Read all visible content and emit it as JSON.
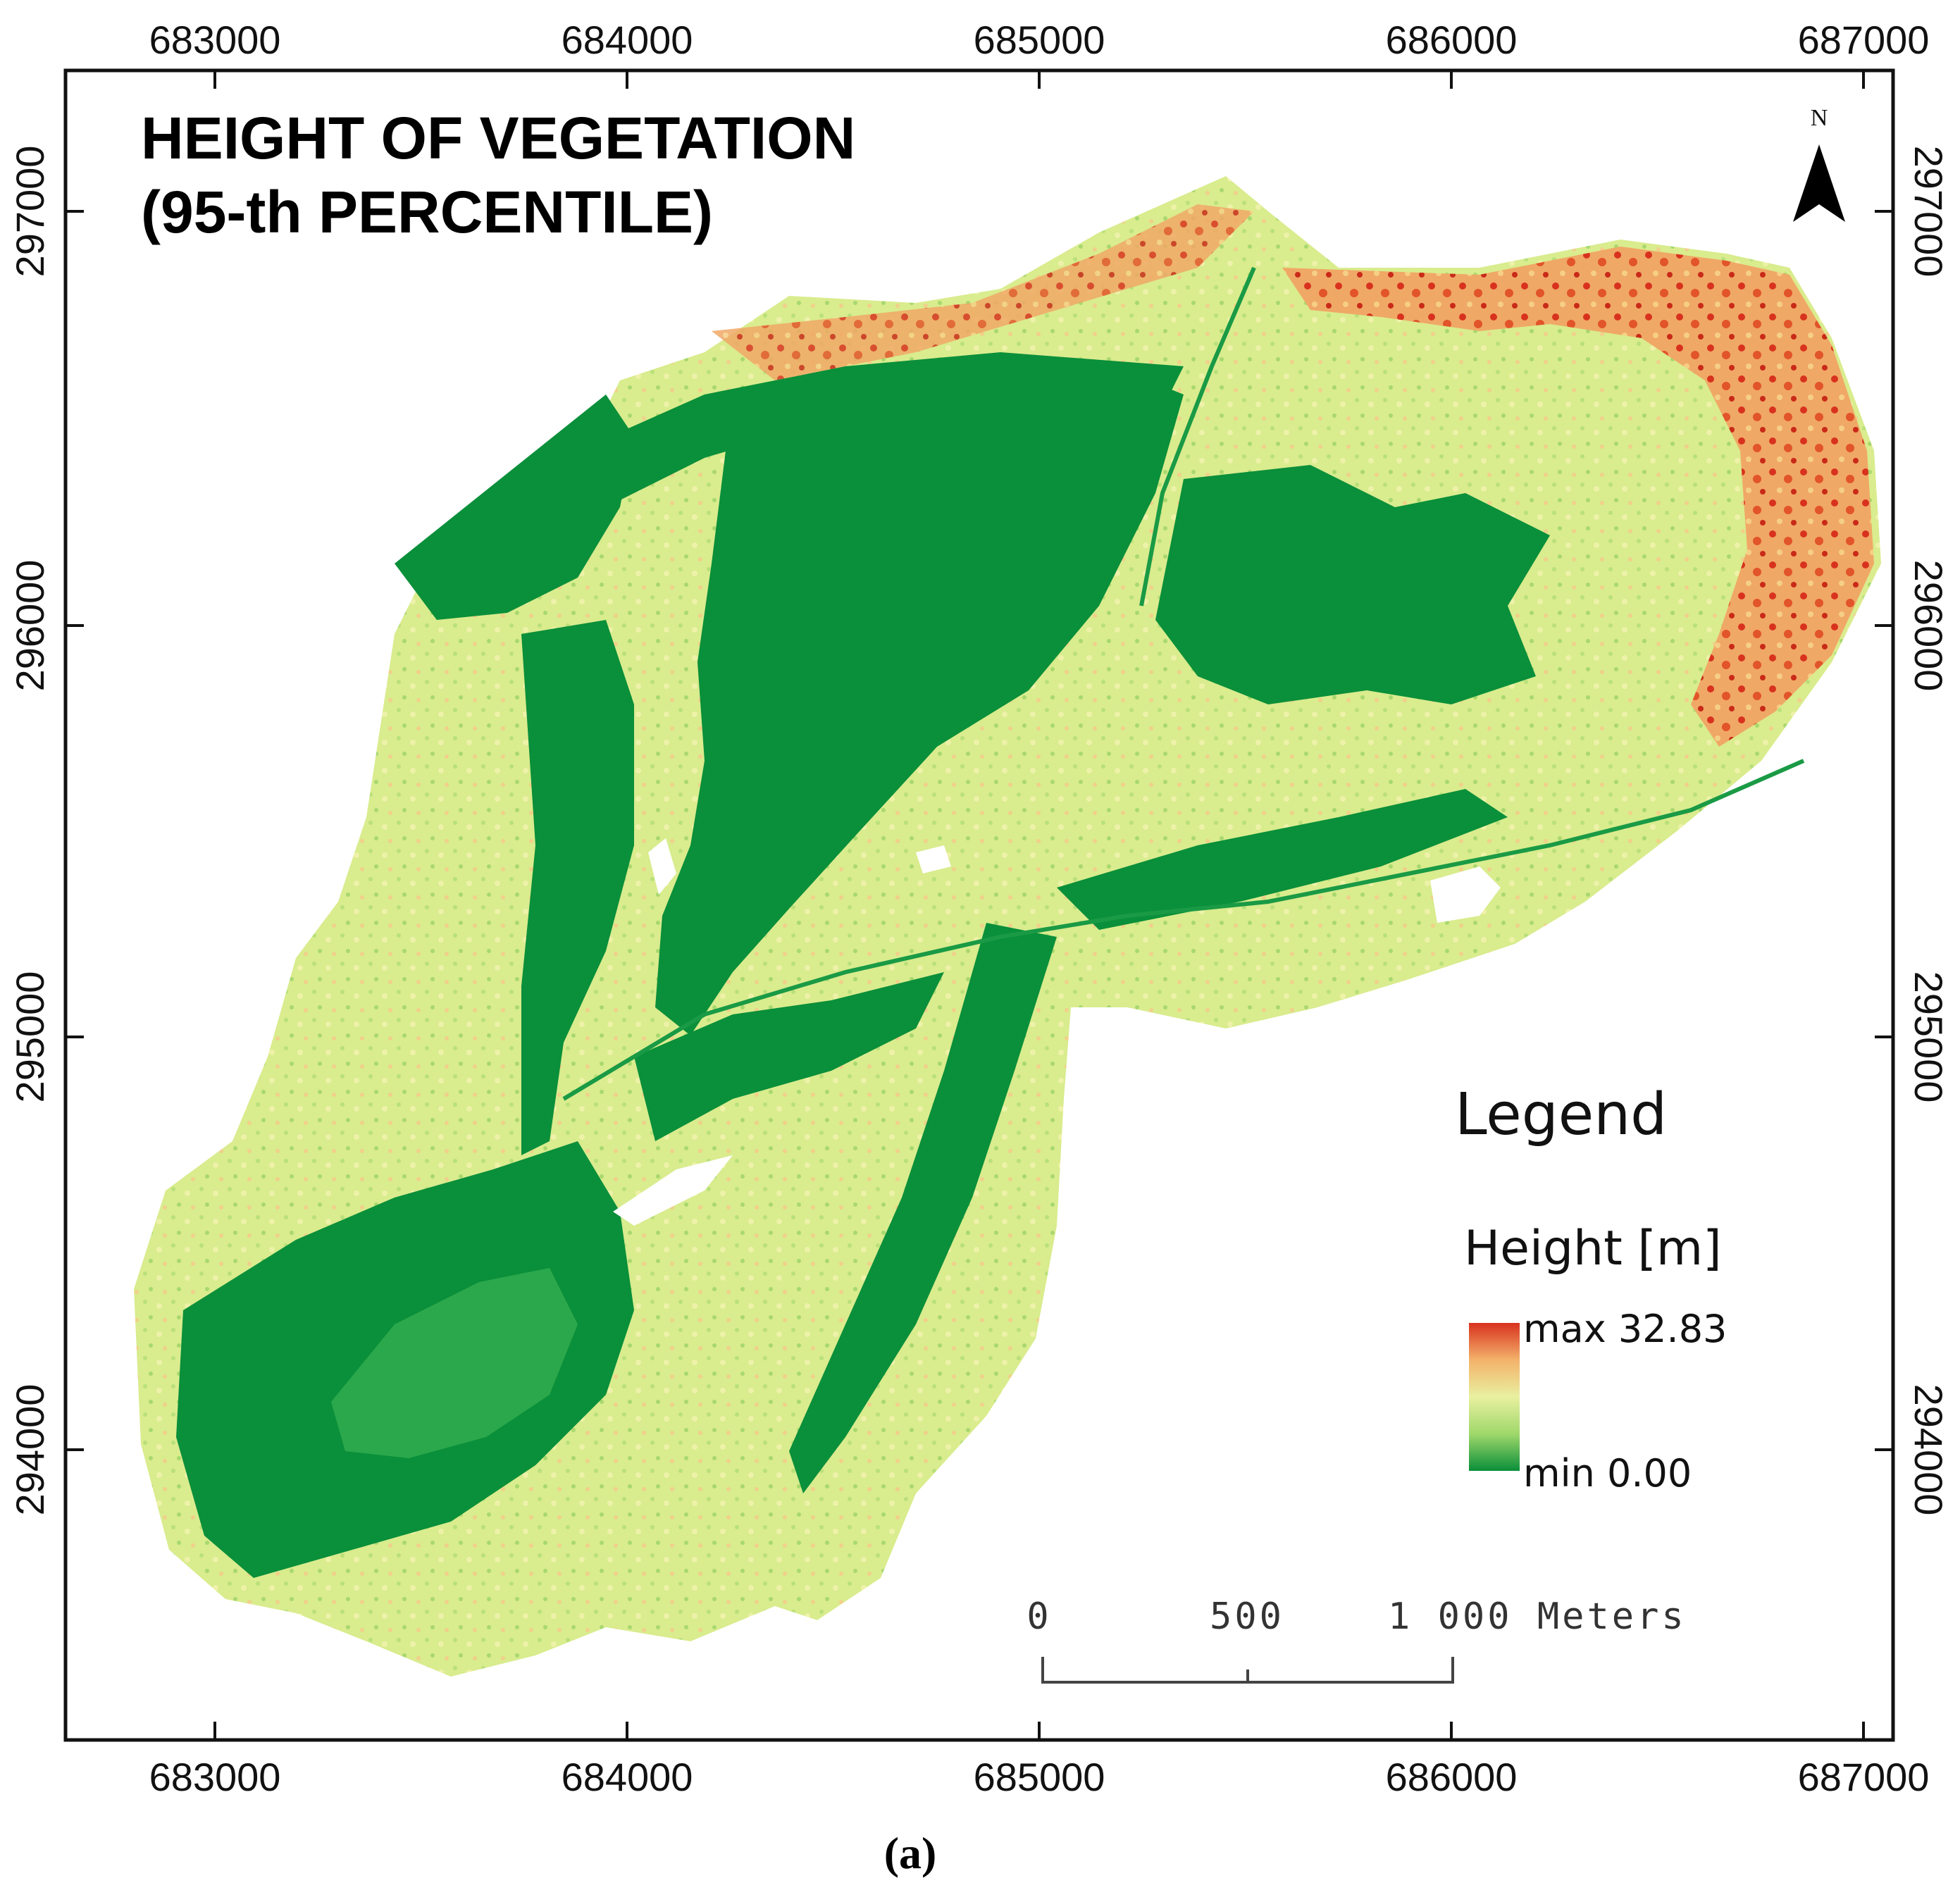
{
  "map": {
    "title_line1": "HEIGHT OF VEGETATION",
    "title_line2": "(95-th PERCENTILE)",
    "caption": "(a)",
    "colors": {
      "frame": "#111111",
      "low": "#0a8f3a",
      "mid_low": "#9fd86a",
      "mid": "#e9f0a0",
      "mid_high": "#f3b26b",
      "high": "#d8321e",
      "water": "#ffffff"
    },
    "x_ticks": [
      "683000",
      "684000",
      "685000",
      "686000",
      "687000"
    ],
    "y_ticks": [
      "297000",
      "296000",
      "295000",
      "294000"
    ],
    "north_arrow": {
      "label": "N",
      "icon": "north-arrow-icon"
    },
    "legend": {
      "title": "Legend",
      "subtitle": "Height [m]",
      "max_label": "max 32.83",
      "min_label": "min 0.00",
      "max_value": 32.83,
      "min_value": 0.0
    },
    "scale_bar": {
      "labels": [
        "0",
        "500",
        "1 000  Meters"
      ],
      "values_m": [
        0,
        500,
        1000
      ]
    }
  }
}
